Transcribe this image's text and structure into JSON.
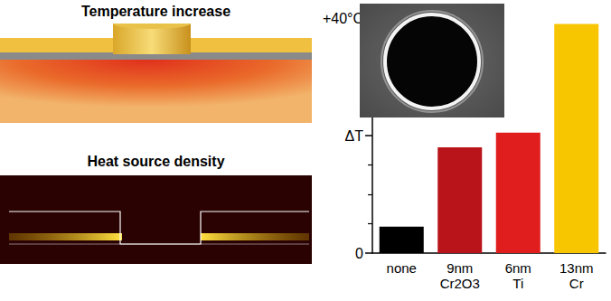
{
  "panels": [
    {
      "title": "Temperature increase"
    },
    {
      "title": "Heat source density"
    }
  ],
  "chart_data": {
    "type": "bar",
    "categories": [
      "none",
      "9nm\nCr2O3",
      "6nm\nTi",
      "13nm\nCr"
    ],
    "values": [
      4.5,
      18,
      20.5,
      39
    ],
    "colors": [
      "#000000",
      "#b8141a",
      "#e01e1e",
      "#f7c600"
    ],
    "ylim": [
      0,
      40
    ],
    "yticks": [
      0,
      {
        "value": 20,
        "label": "ΔT"
      },
      {
        "value": 40,
        "label": "+40°C"
      }
    ]
  }
}
